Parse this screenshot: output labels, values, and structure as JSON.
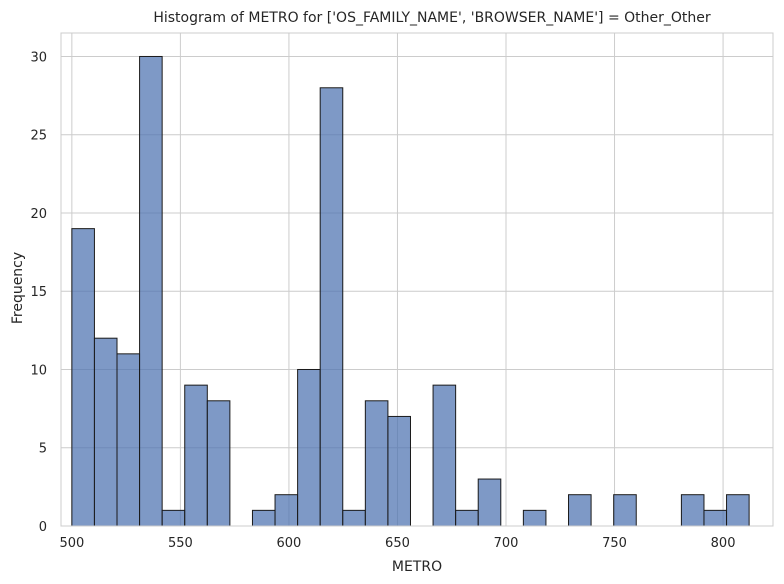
{
  "chart_data": {
    "type": "bar",
    "title": "Histogram of METRO for ['OS_FAMILY_NAME', 'BROWSER_NAME'] = Other_Other",
    "xlabel": "METRO",
    "ylabel": "Frequency",
    "xlim": [
      495,
      823
    ],
    "ylim": [
      0,
      31.5
    ],
    "xticks": [
      500,
      550,
      600,
      650,
      700,
      750,
      800
    ],
    "yticks": [
      0,
      5,
      10,
      15,
      20,
      25,
      30
    ],
    "grid": true,
    "bins": [
      {
        "x0": 500.0,
        "x1": 510.4,
        "value": 19
      },
      {
        "x0": 510.4,
        "x1": 520.8,
        "value": 12
      },
      {
        "x0": 520.8,
        "x1": 531.2,
        "value": 11
      },
      {
        "x0": 531.2,
        "x1": 541.6,
        "value": 30
      },
      {
        "x0": 541.6,
        "x1": 552.0,
        "value": 1
      },
      {
        "x0": 552.0,
        "x1": 562.4,
        "value": 9
      },
      {
        "x0": 562.4,
        "x1": 572.8,
        "value": 8
      },
      {
        "x0": 572.8,
        "x1": 583.2,
        "value": 0
      },
      {
        "x0": 583.2,
        "x1": 593.6,
        "value": 1
      },
      {
        "x0": 593.6,
        "x1": 604.0,
        "value": 2
      },
      {
        "x0": 604.0,
        "x1": 614.4,
        "value": 10
      },
      {
        "x0": 614.4,
        "x1": 624.8,
        "value": 28
      },
      {
        "x0": 624.8,
        "x1": 635.2,
        "value": 1
      },
      {
        "x0": 635.2,
        "x1": 645.6,
        "value": 8
      },
      {
        "x0": 645.6,
        "x1": 656.0,
        "value": 7
      },
      {
        "x0": 656.0,
        "x1": 666.4,
        "value": 0
      },
      {
        "x0": 666.4,
        "x1": 676.8,
        "value": 9
      },
      {
        "x0": 676.8,
        "x1": 687.2,
        "value": 1
      },
      {
        "x0": 687.2,
        "x1": 697.6,
        "value": 3
      },
      {
        "x0": 697.6,
        "x1": 708.0,
        "value": 0
      },
      {
        "x0": 708.0,
        "x1": 718.4,
        "value": 1
      },
      {
        "x0": 718.4,
        "x1": 728.8,
        "value": 0
      },
      {
        "x0": 728.8,
        "x1": 739.2,
        "value": 2
      },
      {
        "x0": 739.2,
        "x1": 749.6,
        "value": 0
      },
      {
        "x0": 749.6,
        "x1": 760.0,
        "value": 2
      },
      {
        "x0": 760.0,
        "x1": 770.4,
        "value": 0
      },
      {
        "x0": 770.4,
        "x1": 780.8,
        "value": 0
      },
      {
        "x0": 780.8,
        "x1": 791.2,
        "value": 2
      },
      {
        "x0": 791.2,
        "x1": 801.6,
        "value": 1
      },
      {
        "x0": 801.6,
        "x1": 812.0,
        "value": 2
      }
    ],
    "colors": {
      "bar": "#4c72b0",
      "edge": "#1a1a1a",
      "grid": "#cccccc"
    }
  }
}
